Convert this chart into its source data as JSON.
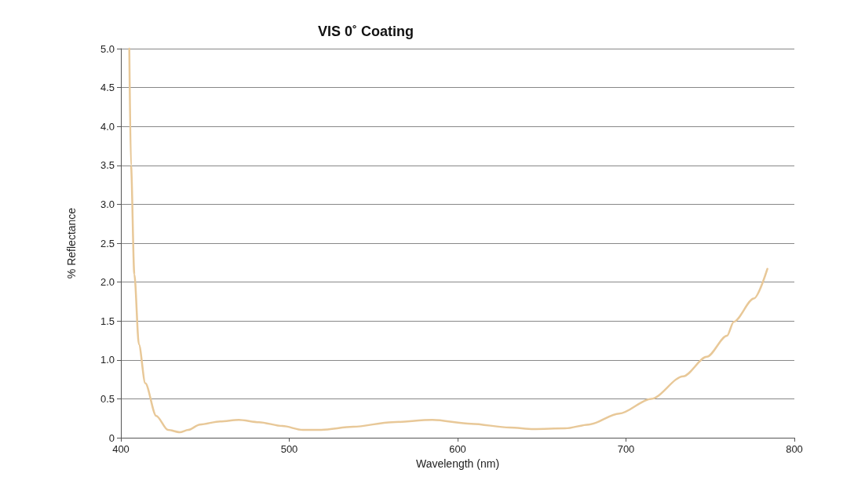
{
  "chart_data": {
    "type": "line",
    "title": "VIS 0˚ Coating",
    "xlabel": "Wavelength (nm)",
    "ylabel": "% Reflectance",
    "xlim": [
      400,
      800
    ],
    "xticks": [
      400,
      500,
      600,
      700,
      800
    ],
    "ylim": [
      0,
      5
    ],
    "yticks": [
      0,
      {
        "value": 0.5,
        "label": "0.5"
      },
      {
        "value": 1,
        "label": "1.0"
      },
      {
        "value": 1.5,
        "label": "1.5"
      },
      {
        "value": 2,
        "label": "2.0"
      },
      {
        "value": 2.5,
        "label": "2.5"
      },
      {
        "value": 3,
        "label": "3.0"
      },
      {
        "value": 3.5,
        "label": "3.5"
      },
      {
        "value": 4,
        "label": "4.0"
      },
      {
        "value": 4.5,
        "label": "4.5"
      },
      {
        "value": 5,
        "label": "5.0"
      }
    ],
    "grid": "y",
    "marker": "none",
    "line_style": "solid",
    "series": [
      {
        "color": "#e8c898",
        "x": [
          405,
          406,
          408,
          410.7,
          414.5,
          421,
          428,
          435,
          440,
          447,
          459,
          470,
          482,
          496,
          508,
          519,
          538,
          561,
          585,
          608,
          631,
          645,
          664,
          678,
          696,
          715,
          734,
          748,
          760,
          764,
          776,
          784
        ],
        "values": [
          5.0,
          3.5,
          2.1,
          1.2,
          0.7,
          0.28,
          0.1,
          0.07,
          0.1,
          0.17,
          0.21,
          0.23,
          0.2,
          0.15,
          0.1,
          0.1,
          0.14,
          0.2,
          0.23,
          0.18,
          0.13,
          0.11,
          0.12,
          0.17,
          0.31,
          0.5,
          0.79,
          1.04,
          1.31,
          1.49,
          1.79,
          2.17
        ]
      }
    ]
  }
}
